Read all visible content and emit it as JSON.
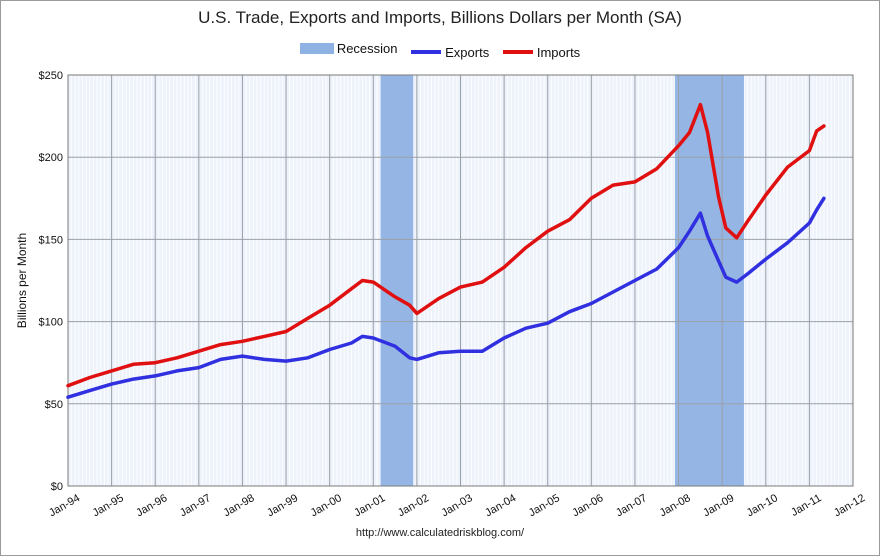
{
  "chart_data": {
    "type": "line",
    "title": "U.S. Trade, Exports and Imports, Billions Dollars per Month (SA)",
    "xlabel": "",
    "ylabel": "Billions per Month",
    "ylim": [
      0,
      250
    ],
    "yticks": [
      "$0",
      "$50",
      "$100",
      "$150",
      "$200",
      "$250"
    ],
    "ytick_values": [
      0,
      50,
      100,
      150,
      200,
      250
    ],
    "xlim": [
      "1994-01",
      "2012-01"
    ],
    "xticks": [
      "Jan-94",
      "Jan-95",
      "Jan-96",
      "Jan-97",
      "Jan-98",
      "Jan-99",
      "Jan-00",
      "Jan-01",
      "Jan-02",
      "Jan-03",
      "Jan-04",
      "Jan-05",
      "Jan-06",
      "Jan-07",
      "Jan-08",
      "Jan-09",
      "Jan-10",
      "Jan-11",
      "Jan-12"
    ],
    "legend_position": "top-center",
    "grid": true,
    "recessions": [
      {
        "start": "2001-03",
        "end": "2001-11"
      },
      {
        "start": "2007-12",
        "end": "2009-06"
      }
    ],
    "legend": [
      {
        "name": "Recession",
        "kind": "area",
        "color": "#8fb2e4"
      },
      {
        "name": "Exports",
        "kind": "line",
        "color": "#3030e0"
      },
      {
        "name": "Imports",
        "kind": "line",
        "color": "#e01010"
      }
    ],
    "series": [
      {
        "name": "Exports",
        "color": "#3030e0",
        "points": [
          [
            "1994-01",
            54
          ],
          [
            "1994-07",
            58
          ],
          [
            "1995-01",
            62
          ],
          [
            "1995-07",
            65
          ],
          [
            "1996-01",
            67
          ],
          [
            "1996-07",
            70
          ],
          [
            "1997-01",
            72
          ],
          [
            "1997-07",
            77
          ],
          [
            "1998-01",
            79
          ],
          [
            "1998-07",
            77
          ],
          [
            "1999-01",
            76
          ],
          [
            "1999-07",
            78
          ],
          [
            "2000-01",
            83
          ],
          [
            "2000-07",
            87
          ],
          [
            "2000-10",
            91
          ],
          [
            "2001-01",
            90
          ],
          [
            "2001-07",
            85
          ],
          [
            "2001-11",
            78
          ],
          [
            "2002-01",
            77
          ],
          [
            "2002-07",
            81
          ],
          [
            "2003-01",
            82
          ],
          [
            "2003-07",
            82
          ],
          [
            "2004-01",
            90
          ],
          [
            "2004-07",
            96
          ],
          [
            "2005-01",
            99
          ],
          [
            "2005-07",
            106
          ],
          [
            "2006-01",
            111
          ],
          [
            "2006-07",
            118
          ],
          [
            "2007-01",
            125
          ],
          [
            "2007-07",
            132
          ],
          [
            "2008-01",
            145
          ],
          [
            "2008-04",
            155
          ],
          [
            "2008-07",
            166
          ],
          [
            "2008-09",
            152
          ],
          [
            "2008-12",
            137
          ],
          [
            "2009-02",
            127
          ],
          [
            "2009-05",
            124
          ],
          [
            "2009-08",
            129
          ],
          [
            "2010-01",
            138
          ],
          [
            "2010-07",
            148
          ],
          [
            "2011-01",
            160
          ],
          [
            "2011-03",
            168
          ],
          [
            "2011-05",
            175
          ]
        ]
      },
      {
        "name": "Imports",
        "color": "#e01010",
        "points": [
          [
            "1994-01",
            61
          ],
          [
            "1994-07",
            66
          ],
          [
            "1995-01",
            70
          ],
          [
            "1995-07",
            74
          ],
          [
            "1996-01",
            75
          ],
          [
            "1996-07",
            78
          ],
          [
            "1997-01",
            82
          ],
          [
            "1997-07",
            86
          ],
          [
            "1998-01",
            88
          ],
          [
            "1998-07",
            91
          ],
          [
            "1999-01",
            94
          ],
          [
            "1999-07",
            102
          ],
          [
            "2000-01",
            110
          ],
          [
            "2000-07",
            120
          ],
          [
            "2000-10",
            125
          ],
          [
            "2001-01",
            124
          ],
          [
            "2001-07",
            115
          ],
          [
            "2001-11",
            110
          ],
          [
            "2002-01",
            105
          ],
          [
            "2002-07",
            114
          ],
          [
            "2003-01",
            121
          ],
          [
            "2003-07",
            124
          ],
          [
            "2004-01",
            133
          ],
          [
            "2004-07",
            145
          ],
          [
            "2005-01",
            155
          ],
          [
            "2005-07",
            162
          ],
          [
            "2006-01",
            175
          ],
          [
            "2006-07",
            183
          ],
          [
            "2007-01",
            185
          ],
          [
            "2007-07",
            193
          ],
          [
            "2008-01",
            207
          ],
          [
            "2008-04",
            215
          ],
          [
            "2008-07",
            232
          ],
          [
            "2008-09",
            215
          ],
          [
            "2008-12",
            176
          ],
          [
            "2009-02",
            157
          ],
          [
            "2009-05",
            151
          ],
          [
            "2009-08",
            161
          ],
          [
            "2010-01",
            177
          ],
          [
            "2010-07",
            194
          ],
          [
            "2011-01",
            204
          ],
          [
            "2011-03",
            216
          ],
          [
            "2011-05",
            219
          ]
        ]
      }
    ]
  },
  "source_text": "http://www.calculatedriskblog.com/"
}
